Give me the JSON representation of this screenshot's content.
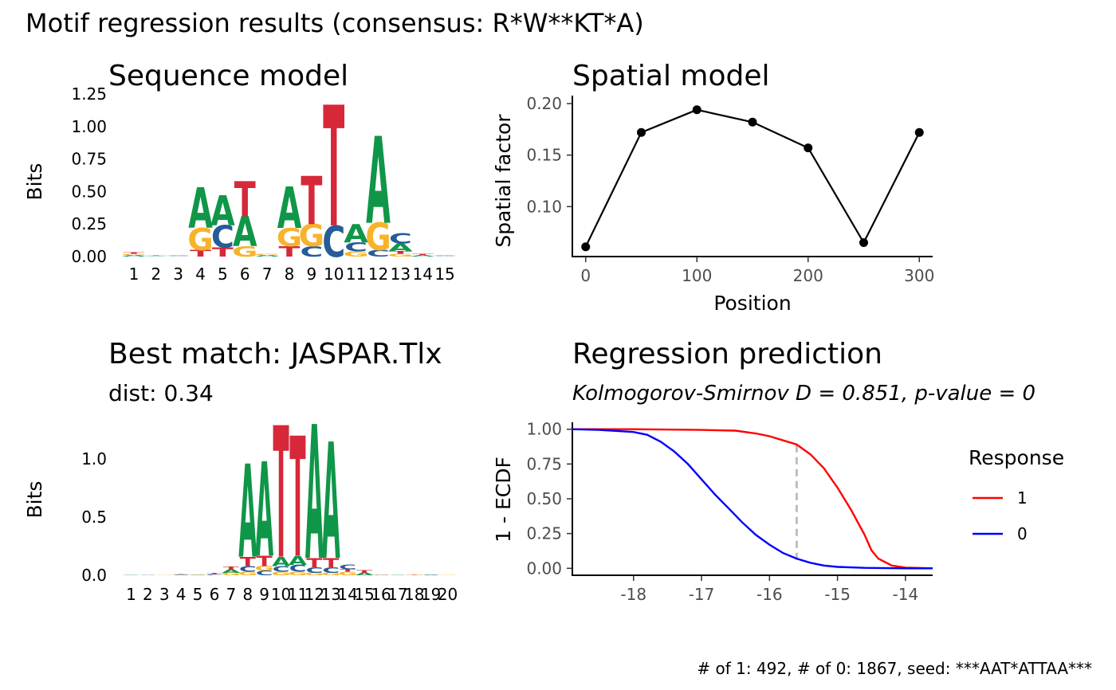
{
  "figure": {
    "main_title": "Motif regression results (consensus: R*W**KT*A)",
    "footer": "# of 1: 492, # of 0: 1867, seed: ***AAT*ATTAA***"
  },
  "colors": {
    "A": "#109648",
    "C": "#255C99",
    "G": "#F7B32B",
    "T": "#D62839",
    "resp1": "#ff0000",
    "resp0": "#0000ff",
    "ks_line": "#bebebe"
  },
  "chart_data": [
    {
      "id": "sequence-model",
      "type": "sequence-logo",
      "title": "Sequence model",
      "ylabel": "Bits",
      "ylim": [
        0,
        1.3
      ],
      "yticks": [
        "0.00",
        "0.25",
        "0.50",
        "0.75",
        "1.00",
        "1.25"
      ],
      "positions": [
        "1",
        "2",
        "3",
        "4",
        "5",
        "6",
        "7",
        "8",
        "9",
        "10",
        "11",
        "12",
        "13",
        "14",
        "15"
      ],
      "letters": [
        [
          [
            "A",
            0.01
          ],
          [
            "G",
            0.01
          ],
          [
            "T",
            0.01
          ]
        ],
        [
          [
            "A",
            0.005
          ],
          [
            "T",
            0.005
          ]
        ],
        [
          [
            "C",
            0.005
          ],
          [
            "A",
            0.005
          ]
        ],
        [
          [
            "T",
            0.05
          ],
          [
            "G",
            0.17
          ],
          [
            "A",
            0.31
          ]
        ],
        [
          [
            "T",
            0.07
          ],
          [
            "C",
            0.17
          ],
          [
            "A",
            0.23
          ]
        ],
        [
          [
            "G",
            0.08
          ],
          [
            "A",
            0.23
          ],
          [
            "T",
            0.27
          ]
        ],
        [
          [
            "A",
            0.01
          ],
          [
            "G",
            0.01
          ]
        ],
        [
          [
            "T",
            0.08
          ],
          [
            "G",
            0.14
          ],
          [
            "A",
            0.32
          ]
        ],
        [
          [
            "C",
            0.08
          ],
          [
            "G",
            0.17
          ],
          [
            "T",
            0.37
          ]
        ],
        [
          [
            "C",
            0.24
          ],
          [
            "T",
            0.93
          ]
        ],
        [
          [
            "G",
            0.04
          ],
          [
            "C",
            0.07
          ],
          [
            "A",
            0.14
          ]
        ],
        [
          [
            "C",
            0.05
          ],
          [
            "G",
            0.21
          ],
          [
            "A",
            0.67
          ]
        ],
        [
          [
            "G",
            0.02
          ],
          [
            "T",
            0.02
          ],
          [
            "A",
            0.06
          ],
          [
            "C",
            0.08
          ]
        ],
        [
          [
            "A",
            0.01
          ],
          [
            "T",
            0.01
          ]
        ],
        [
          [
            "C",
            0.005
          ],
          [
            "A",
            0.005
          ]
        ]
      ]
    },
    {
      "id": "spatial-model",
      "type": "line",
      "title": "Spatial model",
      "xlabel": "Position",
      "ylabel": "Spatial factor",
      "xlim": [
        -12,
        312
      ],
      "ylim": [
        0.0515,
        0.2
      ],
      "xticks": [
        0,
        100,
        200,
        300
      ],
      "yticks": [
        0.1,
        0.15,
        0.2
      ],
      "ytick_labels": [
        "0.10",
        "0.15",
        "0.20"
      ],
      "x": [
        0,
        50,
        100,
        150,
        200,
        250,
        300
      ],
      "y": [
        0.061,
        0.172,
        0.194,
        0.182,
        0.157,
        0.065,
        0.172
      ]
    },
    {
      "id": "best-match",
      "type": "sequence-logo",
      "title": "Best match: JASPAR.Tlx",
      "subtitle": "dist: 0.34",
      "ylabel": "Bits",
      "ylim": [
        0,
        1.45
      ],
      "yticks": [
        "0.0",
        "0.5",
        "1.0"
      ],
      "positions": [
        "1",
        "2",
        "3",
        "4",
        "5",
        "6",
        "7",
        "8",
        "9",
        "10",
        "11",
        "12",
        "13",
        "14",
        "15",
        "16",
        "17",
        "18",
        "19",
        "20"
      ],
      "letters": [
        [
          [
            "A",
            0.003
          ]
        ],
        [
          [
            "C",
            0.003
          ]
        ],
        [
          [
            "G",
            0.003
          ]
        ],
        [
          [
            "A",
            0.005
          ],
          [
            "C",
            0.005
          ],
          [
            "T",
            0.005
          ]
        ],
        [
          [
            "G",
            0.005
          ],
          [
            "A",
            0.005
          ]
        ],
        [
          [
            "C",
            0.01
          ],
          [
            "T",
            0.01
          ]
        ],
        [
          [
            "G",
            0.02
          ],
          [
            "A",
            0.03
          ],
          [
            "T",
            0.02
          ]
        ],
        [
          [
            "G",
            0.03
          ],
          [
            "C",
            0.05
          ],
          [
            "T",
            0.08
          ],
          [
            "A",
            0.8
          ]
        ],
        [
          [
            "C",
            0.04
          ],
          [
            "G",
            0.04
          ],
          [
            "T",
            0.09
          ],
          [
            "A",
            0.81
          ]
        ],
        [
          [
            "G",
            0.03
          ],
          [
            "C",
            0.05
          ],
          [
            "A",
            0.08
          ],
          [
            "T",
            1.13
          ]
        ],
        [
          [
            "G",
            0.03
          ],
          [
            "C",
            0.06
          ],
          [
            "A",
            0.08
          ],
          [
            "T",
            1.03
          ]
        ],
        [
          [
            "G",
            0.02
          ],
          [
            "C",
            0.05
          ],
          [
            "T",
            0.08
          ],
          [
            "A",
            1.15
          ]
        ],
        [
          [
            "G",
            0.02
          ],
          [
            "C",
            0.05
          ],
          [
            "T",
            0.08
          ],
          [
            "A",
            1.0
          ]
        ],
        [
          [
            "G",
            0.03
          ],
          [
            "T",
            0.02
          ],
          [
            "C",
            0.04
          ]
        ],
        [
          [
            "A",
            0.02
          ],
          [
            "T",
            0.02
          ]
        ],
        [
          [
            "C",
            0.005
          ],
          [
            "G",
            0.005
          ]
        ],
        [
          [
            "A",
            0.003
          ]
        ],
        [
          [
            "T",
            0.005
          ],
          [
            "G",
            0.005
          ]
        ],
        [
          [
            "A",
            0.005
          ],
          [
            "C",
            0.005
          ]
        ],
        [
          [
            "G",
            0.003
          ]
        ]
      ]
    },
    {
      "id": "regression-prediction",
      "type": "line",
      "title": "Regression prediction",
      "subtitle": "Kolmogorov-Smirnov D = 0.851, p-value = 0",
      "xlabel": "",
      "ylabel": "1 - ECDF",
      "xlim": [
        -18.9,
        -13.6
      ],
      "ylim": [
        -0.05,
        1.05
      ],
      "xticks": [
        -18,
        -17,
        -16,
        -15,
        -14
      ],
      "yticks": [
        0,
        0.25,
        0.5,
        0.75,
        1
      ],
      "ytick_labels": [
        "0.00",
        "0.25",
        "0.50",
        "0.75",
        "1.00"
      ],
      "ks_x": -15.6,
      "legend": {
        "title": "Response",
        "position": "right"
      },
      "series": [
        {
          "name": "1",
          "color": "#ff0000",
          "x": [
            -18.9,
            -18,
            -17,
            -16.5,
            -16.2,
            -16,
            -15.8,
            -15.6,
            -15.4,
            -15.2,
            -15,
            -14.8,
            -14.6,
            -14.5,
            -14.4,
            -14.2,
            -14,
            -13.6
          ],
          "y": [
            1.0,
            1.0,
            0.995,
            0.99,
            0.97,
            0.95,
            0.92,
            0.89,
            0.82,
            0.72,
            0.58,
            0.42,
            0.24,
            0.13,
            0.07,
            0.02,
            0.005,
            0.0
          ]
        },
        {
          "name": "0",
          "color": "#0000ff",
          "x": [
            -18.9,
            -18.5,
            -18,
            -17.8,
            -17.6,
            -17.4,
            -17.2,
            -17,
            -16.8,
            -16.6,
            -16.4,
            -16.2,
            -16,
            -15.8,
            -15.6,
            -15.4,
            -15.2,
            -15,
            -14.6,
            -14,
            -13.6
          ],
          "y": [
            1.0,
            0.995,
            0.98,
            0.96,
            0.91,
            0.84,
            0.75,
            0.64,
            0.53,
            0.43,
            0.33,
            0.24,
            0.17,
            0.11,
            0.07,
            0.04,
            0.02,
            0.01,
            0.003,
            0.0,
            0.0
          ]
        }
      ]
    }
  ]
}
